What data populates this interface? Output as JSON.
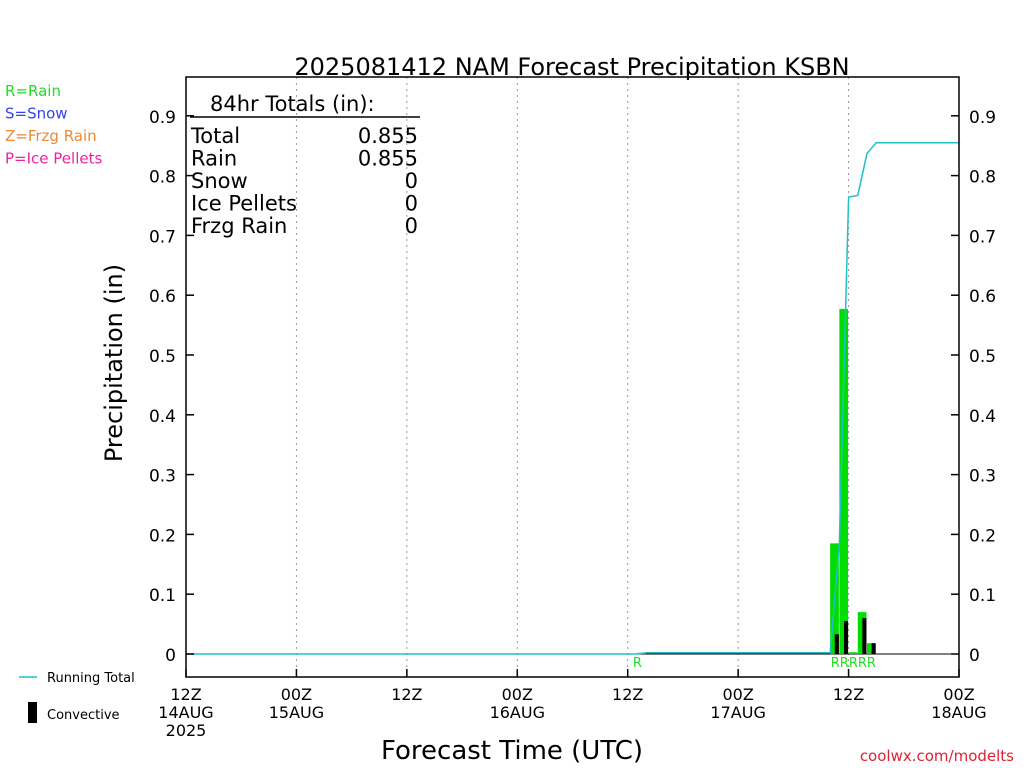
{
  "chart_data": {
    "type": "bar",
    "title": "2025081412 NAM Forecast Precipitation KSBN",
    "xlabel": "Forecast Time (UTC)",
    "ylabel": "Precipitation (in)",
    "ylim": [
      0,
      0.95
    ],
    "y_ticks": [
      "0",
      "0.1",
      "0.2",
      "0.3",
      "0.4",
      "0.5",
      "0.6",
      "0.7",
      "0.8",
      "0.9"
    ],
    "x_range_hours": [
      0,
      84
    ],
    "x_ticks": [
      {
        "hour": 0,
        "line1": "12Z",
        "line2": "14AUG",
        "line3": "2025"
      },
      {
        "hour": 12,
        "line1": "00Z",
        "line2": "15AUG",
        "line3": ""
      },
      {
        "hour": 24,
        "line1": "12Z",
        "line2": "",
        "line3": ""
      },
      {
        "hour": 36,
        "line1": "00Z",
        "line2": "16AUG",
        "line3": ""
      },
      {
        "hour": 48,
        "line1": "12Z",
        "line2": "",
        "line3": ""
      },
      {
        "hour": 60,
        "line1": "00Z",
        "line2": "17AUG",
        "line3": ""
      },
      {
        "hour": 72,
        "line1": "12Z",
        "line2": "",
        "line3": ""
      },
      {
        "hour": 84,
        "line1": "00Z",
        "line2": "18AUG",
        "line3": ""
      }
    ],
    "grid": "vertical-dotted",
    "totals_box": {
      "header": "84hr Totals (in):",
      "rows": [
        {
          "label": "Total",
          "value": "0.855"
        },
        {
          "label": "Rain",
          "value": "0.855"
        },
        {
          "label": "Snow",
          "value": "0"
        },
        {
          "label": "Ice Pellets",
          "value": "0"
        },
        {
          "label": "Frzg Rain",
          "value": "0"
        }
      ]
    },
    "type_legend": [
      {
        "text": "R=Rain",
        "color": "#22dd22"
      },
      {
        "text": "S=Snow",
        "color": "#3344ee"
      },
      {
        "text": "Z=Frzg Rain",
        "color": "#ee8833"
      },
      {
        "text": "P=Ice Pellets",
        "color": "#ee2299"
      }
    ],
    "series_legend": [
      {
        "name": "Running Total",
        "color": "#20c0c8"
      },
      {
        "name": "Convective",
        "color": "#000000"
      }
    ],
    "series": [
      {
        "name": "Rain",
        "color": "#00dd00",
        "bars": [
          {
            "start_hour": 49,
            "end_hour": 50,
            "value": 0.002
          },
          {
            "start_hour": 70,
            "end_hour": 71,
            "value": 0.185
          },
          {
            "start_hour": 71,
            "end_hour": 72,
            "value": 0.577
          },
          {
            "start_hour": 72,
            "end_hour": 73,
            "value": 0.003
          },
          {
            "start_hour": 73,
            "end_hour": 74,
            "value": 0.07
          },
          {
            "start_hour": 74,
            "end_hour": 75,
            "value": 0.018
          }
        ]
      },
      {
        "name": "Convective",
        "color": "#000000",
        "bars": [
          {
            "start_hour": 70.5,
            "end_hour": 71,
            "value": 0.033
          },
          {
            "start_hour": 71.5,
            "end_hour": 72,
            "value": 0.055
          },
          {
            "start_hour": 73.5,
            "end_hour": 74,
            "value": 0.06
          },
          {
            "start_hour": 74.5,
            "end_hour": 75,
            "value": 0.018
          }
        ]
      },
      {
        "name": "Running Total",
        "color": "#20c0c8",
        "x": [
          0,
          49,
          50,
          70,
          71,
          72,
          73,
          74,
          75,
          84
        ],
        "values": [
          0,
          0,
          0.002,
          0.002,
          0.187,
          0.764,
          0.767,
          0.837,
          0.855,
          0.855
        ]
      }
    ],
    "precip_type_markers": [
      {
        "hour": 49,
        "text": "R"
      },
      {
        "hour": 70.5,
        "text": "RRRRR"
      }
    ],
    "marker_color": "#22dd22",
    "watermark": "coolwx.com/modelts",
    "watermark_color": "#dd2233"
  }
}
